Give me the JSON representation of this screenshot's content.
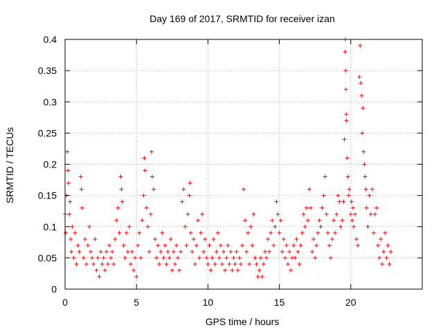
{
  "chart_data": {
    "type": "scatter",
    "title": "Day 169 of 2017, SRMTID for receiver izan",
    "xlabel": "GPS time / hours",
    "ylabel": "SRMTID / TECUs",
    "xlim": [
      0,
      25
    ],
    "ylim": [
      0,
      0.4
    ],
    "xticks": [
      0,
      5,
      10,
      15,
      20
    ],
    "xtick_labels": [
      "0",
      "5",
      "10",
      "15",
      "20"
    ],
    "yticks": [
      0,
      0.05,
      0.1,
      0.15,
      0.2,
      0.25,
      0.3,
      0.35,
      0.4
    ],
    "ytick_labels": [
      "0",
      "0.05",
      "0.1",
      "0.15",
      "0.2",
      "0.25",
      "0.3",
      "0.35",
      "0.4"
    ],
    "grid": true,
    "marker": "+",
    "color": "#ff0000",
    "series": [
      {
        "name": "SRMTID",
        "points": [
          [
            0.0,
            0.12
          ],
          [
            0.05,
            0.09
          ],
          [
            0.1,
            0.15
          ],
          [
            0.15,
            0.22
          ],
          [
            0.2,
            0.19
          ],
          [
            0.25,
            0.17
          ],
          [
            0.3,
            0.12
          ],
          [
            0.35,
            0.14
          ],
          [
            0.4,
            0.08
          ],
          [
            0.45,
            0.06
          ],
          [
            0.5,
            0.1
          ],
          [
            0.6,
            0.05
          ],
          [
            0.7,
            0.09
          ],
          [
            0.8,
            0.04
          ],
          [
            0.9,
            0.07
          ],
          [
            1.0,
            0.06
          ],
          [
            1.1,
            0.18
          ],
          [
            1.15,
            0.16
          ],
          [
            1.2,
            0.13
          ],
          [
            1.3,
            0.05
          ],
          [
            1.4,
            0.08
          ],
          [
            1.5,
            0.04
          ],
          [
            1.6,
            0.07
          ],
          [
            1.7,
            0.1
          ],
          [
            1.8,
            0.06
          ],
          [
            1.9,
            0.05
          ],
          [
            2.0,
            0.04
          ],
          [
            2.1,
            0.08
          ],
          [
            2.2,
            0.03
          ],
          [
            2.3,
            0.05
          ],
          [
            2.4,
            0.02
          ],
          [
            2.5,
            0.06
          ],
          [
            2.6,
            0.04
          ],
          [
            2.7,
            0.05
          ],
          [
            2.8,
            0.03
          ],
          [
            2.9,
            0.06
          ],
          [
            3.0,
            0.04
          ],
          [
            3.1,
            0.07
          ],
          [
            3.2,
            0.05
          ],
          [
            3.3,
            0.06
          ],
          [
            3.4,
            0.04
          ],
          [
            3.5,
            0.08
          ],
          [
            3.6,
            0.11
          ],
          [
            3.7,
            0.13
          ],
          [
            3.8,
            0.09
          ],
          [
            3.9,
            0.18
          ],
          [
            3.95,
            0.16
          ],
          [
            4.0,
            0.14
          ],
          [
            4.1,
            0.07
          ],
          [
            4.2,
            0.05
          ],
          [
            4.3,
            0.09
          ],
          [
            4.4,
            0.06
          ],
          [
            4.5,
            0.1
          ],
          [
            4.6,
            0.04
          ],
          [
            4.7,
            0.06
          ],
          [
            4.8,
            0.03
          ],
          [
            4.9,
            0.05
          ],
          [
            5.0,
            0.02
          ],
          [
            5.1,
            0.07
          ],
          [
            5.2,
            0.09
          ],
          [
            5.3,
            0.05
          ],
          [
            5.4,
            0.11
          ],
          [
            5.5,
            0.15
          ],
          [
            5.55,
            0.21
          ],
          [
            5.6,
            0.19
          ],
          [
            5.7,
            0.13
          ],
          [
            5.8,
            0.1
          ],
          [
            5.9,
            0.06
          ],
          [
            6.0,
            0.12
          ],
          [
            6.05,
            0.22
          ],
          [
            6.1,
            0.18
          ],
          [
            6.2,
            0.16
          ],
          [
            6.3,
            0.08
          ],
          [
            6.4,
            0.05
          ],
          [
            6.5,
            0.07
          ],
          [
            6.6,
            0.04
          ],
          [
            6.7,
            0.06
          ],
          [
            6.8,
            0.09
          ],
          [
            6.9,
            0.05
          ],
          [
            7.0,
            0.07
          ],
          [
            7.1,
            0.04
          ],
          [
            7.2,
            0.06
          ],
          [
            7.3,
            0.05
          ],
          [
            7.4,
            0.08
          ],
          [
            7.5,
            0.03
          ],
          [
            7.6,
            0.06
          ],
          [
            7.7,
            0.04
          ],
          [
            7.8,
            0.07
          ],
          [
            7.9,
            0.05
          ],
          [
            8.0,
            0.03
          ],
          [
            8.1,
            0.06
          ],
          [
            8.2,
            0.14
          ],
          [
            8.3,
            0.16
          ],
          [
            8.4,
            0.1
          ],
          [
            8.5,
            0.07
          ],
          [
            8.6,
            0.12
          ],
          [
            8.7,
            0.15
          ],
          [
            8.75,
            0.17
          ],
          [
            8.8,
            0.09
          ],
          [
            8.9,
            0.06
          ],
          [
            9.0,
            0.08
          ],
          [
            9.1,
            0.04
          ],
          [
            9.2,
            0.07
          ],
          [
            9.3,
            0.11
          ],
          [
            9.4,
            0.05
          ],
          [
            9.5,
            0.09
          ],
          [
            9.6,
            0.12
          ],
          [
            9.7,
            0.06
          ],
          [
            9.8,
            0.08
          ],
          [
            9.9,
            0.05
          ],
          [
            10.0,
            0.04
          ],
          [
            10.1,
            0.07
          ],
          [
            10.2,
            0.03
          ],
          [
            10.3,
            0.05
          ],
          [
            10.4,
            0.08
          ],
          [
            10.5,
            0.04
          ],
          [
            10.6,
            0.06
          ],
          [
            10.7,
            0.09
          ],
          [
            10.8,
            0.05
          ],
          [
            10.9,
            0.07
          ],
          [
            11.0,
            0.04
          ],
          [
            11.1,
            0.06
          ],
          [
            11.2,
            0.03
          ],
          [
            11.3,
            0.05
          ],
          [
            11.4,
            0.07
          ],
          [
            11.5,
            0.04
          ],
          [
            11.6,
            0.06
          ],
          [
            11.7,
            0.03
          ],
          [
            11.8,
            0.05
          ],
          [
            11.9,
            0.04
          ],
          [
            12.0,
            0.06
          ],
          [
            12.1,
            0.03
          ],
          [
            12.2,
            0.05
          ],
          [
            12.3,
            0.04
          ],
          [
            12.4,
            0.07
          ],
          [
            12.5,
            0.16
          ],
          [
            12.6,
            0.11
          ],
          [
            12.7,
            0.06
          ],
          [
            12.8,
            0.09
          ],
          [
            12.9,
            0.04
          ],
          [
            13.0,
            0.1
          ],
          [
            13.1,
            0.07
          ],
          [
            13.2,
            0.12
          ],
          [
            13.3,
            0.05
          ],
          [
            13.4,
            0.04
          ],
          [
            13.5,
            0.02
          ],
          [
            13.6,
            0.03
          ],
          [
            13.7,
            0.05
          ],
          [
            13.8,
            0.02
          ],
          [
            13.9,
            0.04
          ],
          [
            14.0,
            0.06
          ],
          [
            14.1,
            0.05
          ],
          [
            14.2,
            0.08
          ],
          [
            14.3,
            0.06
          ],
          [
            14.4,
            0.09
          ],
          [
            14.5,
            0.11
          ],
          [
            14.6,
            0.07
          ],
          [
            14.7,
            0.1
          ],
          [
            14.8,
            0.14
          ],
          [
            14.9,
            0.12
          ],
          [
            15.0,
            0.09
          ],
          [
            15.1,
            0.11
          ],
          [
            15.2,
            0.06
          ],
          [
            15.3,
            0.08
          ],
          [
            15.4,
            0.05
          ],
          [
            15.5,
            0.07
          ],
          [
            15.6,
            0.04
          ],
          [
            15.7,
            0.06
          ],
          [
            15.8,
            0.03
          ],
          [
            15.9,
            0.05
          ],
          [
            16.0,
            0.07
          ],
          [
            16.1,
            0.05
          ],
          [
            16.2,
            0.08
          ],
          [
            16.3,
            0.06
          ],
          [
            16.4,
            0.04
          ],
          [
            16.5,
            0.07
          ],
          [
            16.6,
            0.09
          ],
          [
            16.7,
            0.12
          ],
          [
            16.8,
            0.1
          ],
          [
            16.9,
            0.13
          ],
          [
            17.0,
            0.11
          ],
          [
            17.1,
            0.16
          ],
          [
            17.2,
            0.13
          ],
          [
            17.3,
            0.06
          ],
          [
            17.4,
            0.08
          ],
          [
            17.5,
            0.05
          ],
          [
            17.6,
            0.07
          ],
          [
            17.7,
            0.09
          ],
          [
            17.8,
            0.11
          ],
          [
            17.9,
            0.1
          ],
          [
            18.0,
            0.13
          ],
          [
            18.1,
            0.15
          ],
          [
            18.2,
            0.18
          ],
          [
            18.3,
            0.12
          ],
          [
            18.4,
            0.09
          ],
          [
            18.5,
            0.07
          ],
          [
            18.6,
            0.05
          ],
          [
            18.7,
            0.08
          ],
          [
            18.8,
            0.11
          ],
          [
            18.9,
            0.09
          ],
          [
            19.0,
            0.12
          ],
          [
            19.1,
            0.15
          ],
          [
            19.2,
            0.14
          ],
          [
            19.3,
            0.1
          ],
          [
            19.4,
            0.11
          ],
          [
            19.5,
            0.14
          ],
          [
            19.55,
            0.24
          ],
          [
            19.6,
            0.38
          ],
          [
            19.62,
            0.4
          ],
          [
            19.64,
            0.35
          ],
          [
            19.66,
            0.32
          ],
          [
            19.68,
            0.28
          ],
          [
            19.7,
            0.27
          ],
          [
            19.75,
            0.21
          ],
          [
            19.8,
            0.18
          ],
          [
            19.85,
            0.15
          ],
          [
            19.9,
            0.16
          ],
          [
            20.0,
            0.12
          ],
          [
            20.05,
            0.14
          ],
          [
            20.1,
            0.11
          ],
          [
            20.15,
            0.13
          ],
          [
            20.2,
            0.1
          ],
          [
            20.3,
            0.12
          ],
          [
            20.4,
            0.08
          ],
          [
            20.5,
            0.07
          ],
          [
            20.6,
            0.34
          ],
          [
            20.65,
            0.39
          ],
          [
            20.7,
            0.33
          ],
          [
            20.75,
            0.31
          ],
          [
            20.8,
            0.25
          ],
          [
            20.85,
            0.29
          ],
          [
            20.9,
            0.22
          ],
          [
            20.95,
            0.2
          ],
          [
            21.0,
            0.18
          ],
          [
            21.05,
            0.16
          ],
          [
            21.1,
            0.13
          ],
          [
            21.2,
            0.1
          ],
          [
            21.3,
            0.15
          ],
          [
            21.4,
            0.12
          ],
          [
            21.5,
            0.16
          ],
          [
            21.6,
            0.09
          ],
          [
            21.7,
            0.12
          ],
          [
            21.8,
            0.13
          ],
          [
            21.9,
            0.07
          ],
          [
            22.0,
            0.05
          ],
          [
            22.1,
            0.08
          ],
          [
            22.2,
            0.04
          ],
          [
            22.3,
            0.06
          ],
          [
            22.4,
            0.09
          ],
          [
            22.5,
            0.05
          ],
          [
            22.6,
            0.07
          ],
          [
            22.7,
            0.04
          ],
          [
            22.8,
            0.06
          ]
        ]
      }
    ]
  }
}
